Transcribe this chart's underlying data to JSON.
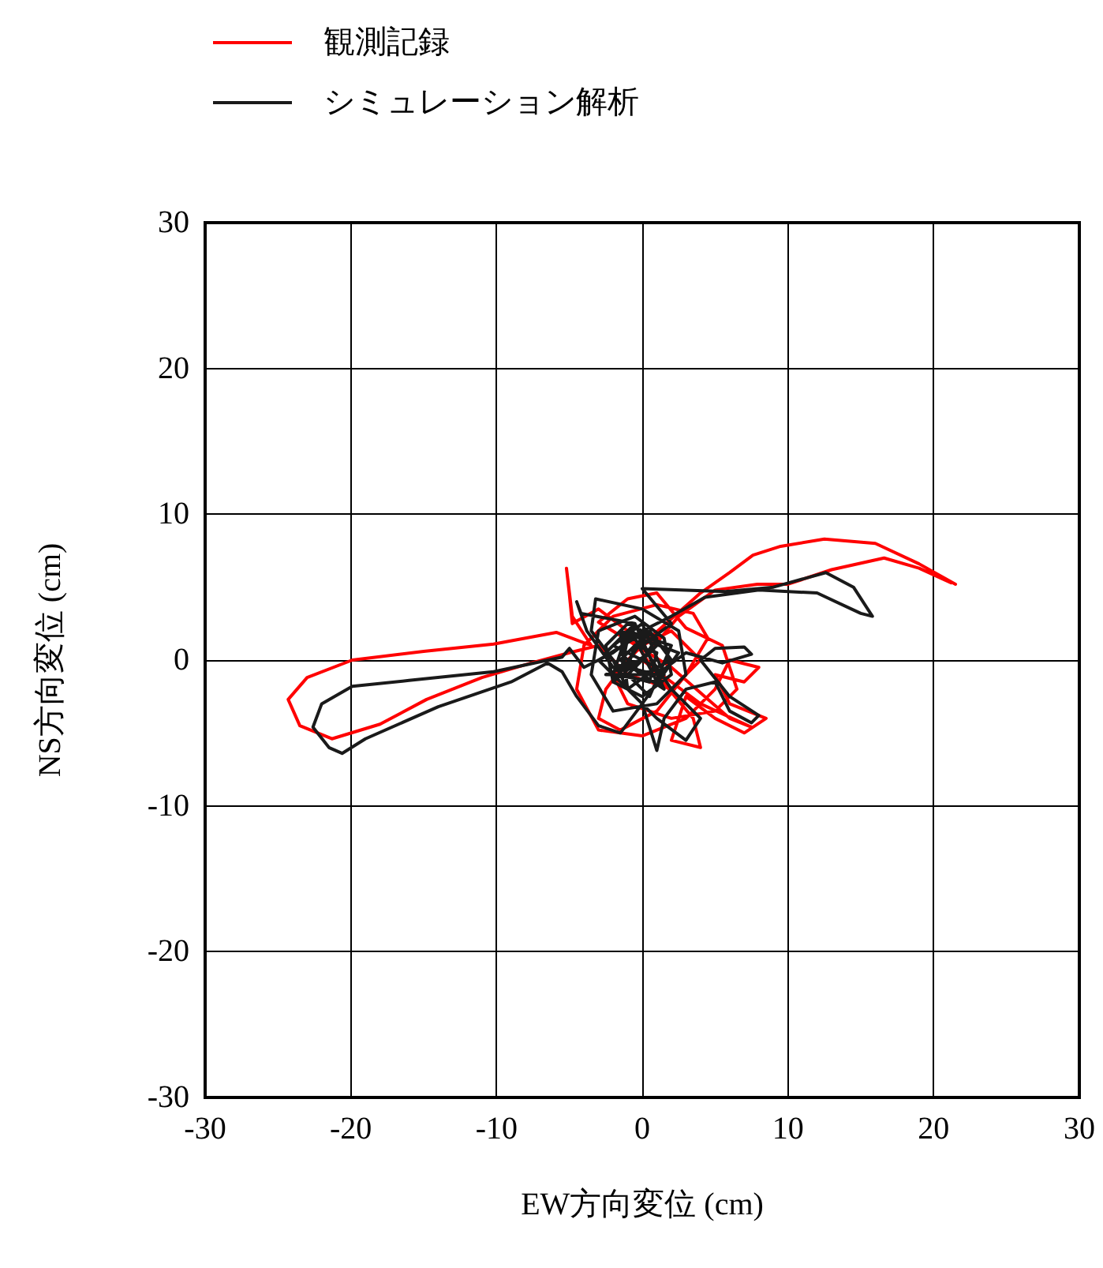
{
  "chart_data": {
    "type": "line",
    "xlabel": "EW方向変位 (cm)",
    "ylabel": "NS方向変位 (cm)",
    "xlim": [
      -30,
      30
    ],
    "xticks": [
      -30,
      -20,
      -10,
      0,
      10,
      20,
      30
    ],
    "ylim": [
      -30,
      30
    ],
    "yticks": [
      -30,
      -20,
      -10,
      0,
      10,
      20,
      30
    ],
    "grid": true,
    "legend": "top left",
    "marker": "none",
    "line_style": "solid",
    "series": [
      {
        "name": "観測記録",
        "color": "#ff0000",
        "x": [
          21.5,
          19,
          16,
          12.5,
          9.5,
          7.6,
          6,
          4,
          2.2,
          0.5,
          -1,
          -2.5,
          -3,
          -1.5,
          1,
          3,
          4.5,
          3.5,
          1,
          -2,
          -4,
          -4.5,
          -3,
          0,
          3,
          5,
          6,
          8,
          7,
          5,
          6,
          8.5,
          7,
          5,
          3,
          2,
          4,
          3.5,
          1,
          -1,
          -3,
          -4.8,
          -5,
          -5.2,
          -4.8,
          -3.5,
          -5.9,
          -10.2,
          -15,
          -19.9,
          -23,
          -24.3,
          -23.5,
          -21.3,
          -18,
          -14.8,
          -11,
          -7.6,
          -5,
          -3,
          -1,
          2,
          4,
          2,
          0,
          -2,
          -1,
          2,
          5,
          6.5,
          5.5,
          3,
          1,
          -1,
          -3,
          2,
          6,
          7.5,
          4,
          0,
          2.5,
          5,
          7.9,
          10,
          13,
          16.6,
          19,
          21.2
        ],
        "values": [
          5.2,
          6.6,
          8,
          8.3,
          7.8,
          7.2,
          6,
          4.6,
          3,
          1.5,
          0,
          -2,
          -4,
          -4.8,
          -3.5,
          -1,
          1.5,
          3.2,
          3.8,
          3,
          1,
          -2,
          -4.8,
          -5.2,
          -4,
          -2,
          0,
          -0.5,
          -1.5,
          -1,
          -3,
          -4,
          -5,
          -4,
          -2.5,
          -5.5,
          -6,
          -4,
          -1,
          2,
          3.5,
          2.5,
          4.5,
          6.3,
          3,
          1,
          1.9,
          1.1,
          0.6,
          0,
          -1.2,
          -2.7,
          -4.5,
          -5.4,
          -4.4,
          -2.7,
          -1.2,
          -0.2,
          0.5,
          1,
          -1,
          -2,
          0,
          2,
          1,
          -1,
          -3,
          -4,
          -3.5,
          -2,
          1,
          2.2,
          4.6,
          4.2,
          2.6,
          -0.5,
          -4,
          -4.6,
          -3,
          0,
          3,
          4.8,
          5.2,
          5.2,
          6.2,
          7,
          6.3,
          5.3
        ]
      },
      {
        "name": "シミュレーション解析",
        "color": "#1a1a1a",
        "x": [
          -1,
          1,
          -2,
          0.5,
          -1.5,
          1.5,
          -0.5,
          -2.5,
          0.5,
          2,
          -1,
          -2,
          1,
          -0.5,
          -3,
          0,
          2.5,
          -1.5,
          -1,
          1,
          -2,
          0,
          1.5,
          -2.5,
          0,
          1,
          -1,
          -2.5,
          -2,
          0,
          2,
          1.5,
          -0.5,
          -3,
          -3.5,
          -2,
          1,
          3,
          2.5,
          0,
          -3.2,
          -3.5,
          -2,
          -1,
          1,
          3,
          4,
          2,
          0,
          2,
          0,
          5.7,
          9,
          12.6,
          14.5,
          15.8,
          15,
          12,
          8,
          4.3,
          2,
          0,
          -2,
          -4,
          -5,
          -5.5,
          -10.2,
          -16,
          -19.9,
          -22,
          -22.6,
          -21.5,
          -20.6,
          -19,
          -14,
          -9,
          -6.5,
          -5.5,
          -4.5,
          -3,
          -1.5,
          0,
          1,
          1.5,
          3,
          5,
          6,
          7.5,
          8,
          6,
          4,
          5,
          7,
          7.5,
          5.5,
          3,
          1,
          -1,
          -0.5,
          1,
          0.5,
          -1.5,
          -1,
          0.5,
          2,
          0,
          -1.5,
          -0.5,
          -4.2,
          -4.5,
          -3.8,
          -2,
          0
        ],
        "values": [
          -1,
          1,
          -1.5,
          2,
          0,
          -2,
          2.5,
          0.5,
          -2.5,
          1,
          2,
          -1,
          -1.5,
          1.5,
          0,
          -3,
          0.5,
          2,
          -2,
          -0.5,
          1,
          2.5,
          -1,
          -1,
          0,
          1.5,
          2.5,
          1,
          -1.5,
          -2.5,
          -1,
          1.5,
          3,
          2,
          -1,
          -3.5,
          -3,
          -1,
          2,
          3.5,
          4.2,
          2,
          0,
          -2,
          -4,
          -5.5,
          -4,
          -2,
          1,
          2.5,
          4.9,
          4.7,
          5,
          6,
          5,
          3,
          3.2,
          4.6,
          4.8,
          4.3,
          3,
          2,
          0.5,
          -0.5,
          0.8,
          0.2,
          -0.8,
          -1.4,
          -1.8,
          -3,
          -4.6,
          -6,
          -6.4,
          -5.4,
          -3.2,
          -1.5,
          -0.2,
          -0.8,
          -2.5,
          -4.5,
          -5,
          -3,
          -6.2,
          -4,
          -2,
          -1.5,
          -3.5,
          -4.3,
          -3.8,
          -2.5,
          0,
          0.8,
          0.9,
          0.4,
          -0.2,
          0.5,
          -1,
          -0.5,
          1,
          0.5,
          -1.5,
          -1,
          1.5,
          2,
          0,
          -1,
          0.5,
          2.5,
          3.2,
          4,
          2,
          -0.5,
          0
        ]
      }
    ]
  }
}
